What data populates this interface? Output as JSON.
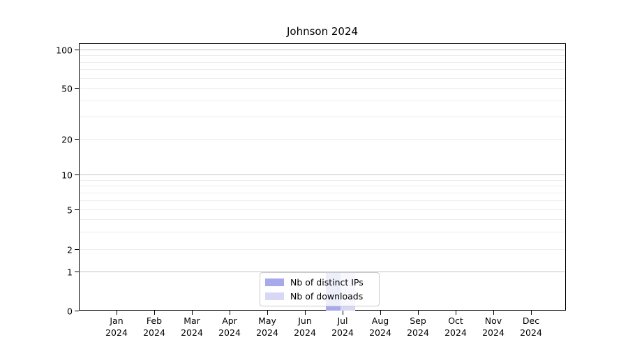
{
  "chart_data": {
    "type": "bar",
    "title": "Johnson 2024",
    "categories": [
      "Jan",
      "Feb",
      "Mar",
      "Apr",
      "May",
      "Jun",
      "Jul",
      "Aug",
      "Sep",
      "Oct",
      "Nov",
      "Dec"
    ],
    "category_year": "2024",
    "series": [
      {
        "name": "Nb of distinct IPs",
        "color": "#a8a8ec",
        "values": [
          0,
          0,
          0,
          0,
          0,
          0,
          1,
          0,
          0,
          0,
          0,
          0
        ]
      },
      {
        "name": "Nb of downloads",
        "color": "#d8d8f6",
        "values": [
          0,
          0,
          0,
          0,
          0,
          0,
          1,
          0,
          0,
          0,
          0,
          0
        ]
      }
    ],
    "yscale": "symlog",
    "ylim": [
      0,
      110
    ],
    "y_major_ticks": [
      100,
      10,
      1
    ],
    "y_labeled_ticks": [
      100,
      50,
      20,
      10,
      5,
      2,
      1,
      0
    ],
    "y_minor_ticks": [
      90,
      80,
      70,
      60,
      40,
      30,
      9,
      8,
      7,
      6,
      4,
      3
    ],
    "grid": true,
    "legend_position": "lower center"
  },
  "legend": {
    "items": [
      {
        "label": "Nb of distinct IPs",
        "color": "#a8a8ec"
      },
      {
        "label": "Nb of downloads",
        "color": "#d8d8f6"
      }
    ]
  }
}
